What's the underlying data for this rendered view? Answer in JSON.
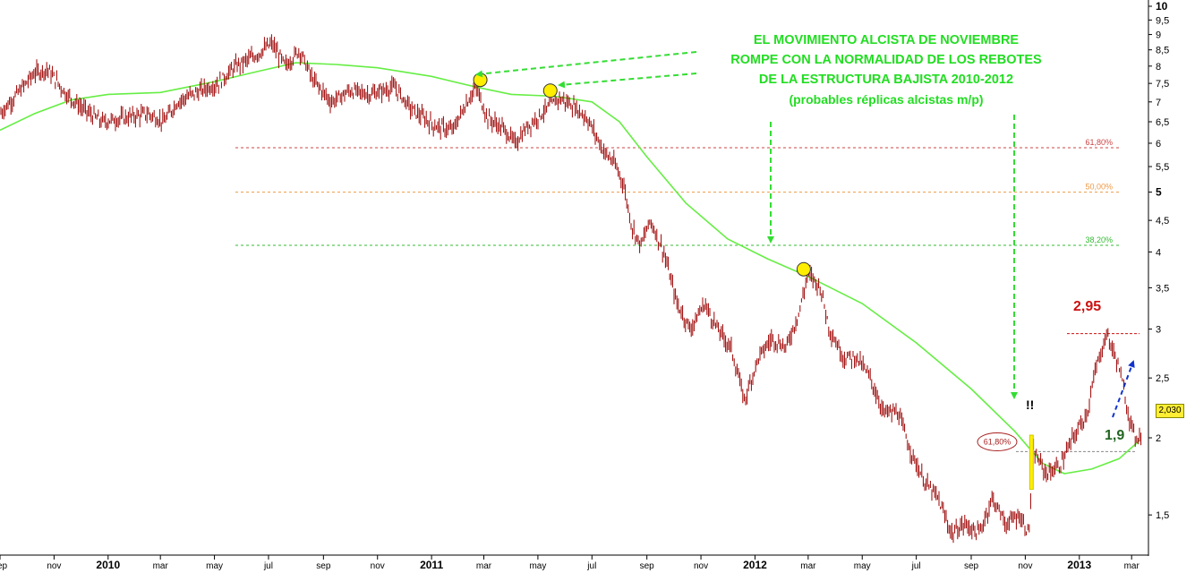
{
  "chart_data": {
    "type": "line",
    "title": "",
    "xlabel": "",
    "ylabel": "",
    "y_scale": "log",
    "ylim": [
      1.3,
      10
    ],
    "y_ticks": [
      "10",
      "9,5",
      "9",
      "8,5",
      "8",
      "7,5",
      "7",
      "6,5",
      "6",
      "5,5",
      "5",
      "4,5",
      "4",
      "3,5",
      "3",
      "2,5",
      "2",
      "1,5"
    ],
    "y_tick_values": [
      10,
      9.5,
      9,
      8.5,
      8,
      7.5,
      7,
      6.5,
      6,
      5.5,
      5,
      4.5,
      4,
      3.5,
      3,
      2.5,
      2,
      1.5
    ],
    "y_major_ticks": [
      "10",
      "5"
    ],
    "x_range": [
      "2009-09-01",
      "2013-03-20"
    ],
    "x_ticks": [
      {
        "label": "sep",
        "date": "2009-09-01",
        "major": false
      },
      {
        "label": "nov",
        "date": "2009-11-01",
        "major": false
      },
      {
        "label": "2010",
        "date": "2010-01-01",
        "major": true
      },
      {
        "label": "mar",
        "date": "2010-03-01",
        "major": false
      },
      {
        "label": "may",
        "date": "2010-05-01",
        "major": false
      },
      {
        "label": "jul",
        "date": "2010-07-01",
        "major": false
      },
      {
        "label": "sep",
        "date": "2010-09-01",
        "major": false
      },
      {
        "label": "nov",
        "date": "2010-11-01",
        "major": false
      },
      {
        "label": "2011",
        "date": "2011-01-01",
        "major": true
      },
      {
        "label": "mar",
        "date": "2011-03-01",
        "major": false
      },
      {
        "label": "may",
        "date": "2011-05-01",
        "major": false
      },
      {
        "label": "jul",
        "date": "2011-07-01",
        "major": false
      },
      {
        "label": "sep",
        "date": "2011-09-01",
        "major": false
      },
      {
        "label": "nov",
        "date": "2011-11-01",
        "major": false
      },
      {
        "label": "2012",
        "date": "2012-01-01",
        "major": true
      },
      {
        "label": "mar",
        "date": "2012-03-01",
        "major": false
      },
      {
        "label": "may",
        "date": "2012-05-01",
        "major": false
      },
      {
        "label": "jul",
        "date": "2012-07-01",
        "major": false
      },
      {
        "label": "sep",
        "date": "2012-09-01",
        "major": false
      },
      {
        "label": "nov",
        "date": "2012-11-01",
        "major": false
      },
      {
        "label": "2013",
        "date": "2013-01-01",
        "major": true
      },
      {
        "label": "mar",
        "date": "2013-03-01",
        "major": false
      }
    ],
    "grid": false,
    "series": [
      {
        "kind": "price-bars",
        "color": "#990000",
        "points": [
          {
            "x": "2009-09-01",
            "y": 6.7
          },
          {
            "x": "2009-09-20",
            "y": 7.2
          },
          {
            "x": "2009-10-10",
            "y": 7.8
          },
          {
            "x": "2009-10-25",
            "y": 7.9
          },
          {
            "x": "2009-11-15",
            "y": 7.2
          },
          {
            "x": "2009-12-05",
            "y": 6.8
          },
          {
            "x": "2009-12-25",
            "y": 6.5
          },
          {
            "x": "2010-01-20",
            "y": 6.6
          },
          {
            "x": "2010-02-15",
            "y": 6.7
          },
          {
            "x": "2010-03-05",
            "y": 6.5
          },
          {
            "x": "2010-03-20",
            "y": 7.0
          },
          {
            "x": "2010-04-15",
            "y": 7.3
          },
          {
            "x": "2010-05-05",
            "y": 7.5
          },
          {
            "x": "2010-05-25",
            "y": 8.0
          },
          {
            "x": "2010-06-15",
            "y": 8.3
          },
          {
            "x": "2010-07-05",
            "y": 8.7
          },
          {
            "x": "2010-07-20",
            "y": 8.0
          },
          {
            "x": "2010-08-05",
            "y": 8.5
          },
          {
            "x": "2010-08-20",
            "y": 7.6
          },
          {
            "x": "2010-09-10",
            "y": 7.0
          },
          {
            "x": "2010-10-01",
            "y": 7.3
          },
          {
            "x": "2010-10-25",
            "y": 7.2
          },
          {
            "x": "2010-11-20",
            "y": 7.4
          },
          {
            "x": "2010-12-10",
            "y": 6.8
          },
          {
            "x": "2011-01-05",
            "y": 6.4
          },
          {
            "x": "2011-01-25",
            "y": 6.3
          },
          {
            "x": "2011-02-10",
            "y": 7.0
          },
          {
            "x": "2011-02-20",
            "y": 7.4
          },
          {
            "x": "2011-03-05",
            "y": 6.6
          },
          {
            "x": "2011-03-25",
            "y": 6.3
          },
          {
            "x": "2011-04-05",
            "y": 6.0
          },
          {
            "x": "2011-04-20",
            "y": 6.4
          },
          {
            "x": "2011-05-10",
            "y": 6.8
          },
          {
            "x": "2011-05-25",
            "y": 7.1
          },
          {
            "x": "2011-06-10",
            "y": 6.9
          },
          {
            "x": "2011-06-25",
            "y": 6.6
          },
          {
            "x": "2011-07-05",
            "y": 6.2
          },
          {
            "x": "2011-07-15",
            "y": 5.8
          },
          {
            "x": "2011-07-25",
            "y": 5.6
          },
          {
            "x": "2011-08-05",
            "y": 5.2
          },
          {
            "x": "2011-08-15",
            "y": 4.4
          },
          {
            "x": "2011-08-25",
            "y": 4.1
          },
          {
            "x": "2011-09-05",
            "y": 4.5
          },
          {
            "x": "2011-09-20",
            "y": 4.0
          },
          {
            "x": "2011-10-05",
            "y": 3.3
          },
          {
            "x": "2011-10-20",
            "y": 3.0
          },
          {
            "x": "2011-11-05",
            "y": 3.3
          },
          {
            "x": "2011-11-20",
            "y": 3.0
          },
          {
            "x": "2011-12-05",
            "y": 2.8
          },
          {
            "x": "2011-12-20",
            "y": 2.3
          },
          {
            "x": "2012-01-05",
            "y": 2.7
          },
          {
            "x": "2012-01-20",
            "y": 2.9
          },
          {
            "x": "2012-02-05",
            "y": 2.8
          },
          {
            "x": "2012-02-20",
            "y": 3.2
          },
          {
            "x": "2012-03-01",
            "y": 3.7
          },
          {
            "x": "2012-03-15",
            "y": 3.5
          },
          {
            "x": "2012-03-25",
            "y": 3.0
          },
          {
            "x": "2012-04-10",
            "y": 2.7
          },
          {
            "x": "2012-04-25",
            "y": 2.7
          },
          {
            "x": "2012-05-10",
            "y": 2.5
          },
          {
            "x": "2012-05-25",
            "y": 2.2
          },
          {
            "x": "2012-06-10",
            "y": 2.2
          },
          {
            "x": "2012-06-25",
            "y": 1.9
          },
          {
            "x": "2012-07-10",
            "y": 1.7
          },
          {
            "x": "2012-07-25",
            "y": 1.6
          },
          {
            "x": "2012-08-10",
            "y": 1.4
          },
          {
            "x": "2012-08-25",
            "y": 1.45
          },
          {
            "x": "2012-09-10",
            "y": 1.4
          },
          {
            "x": "2012-09-25",
            "y": 1.6
          },
          {
            "x": "2012-10-10",
            "y": 1.45
          },
          {
            "x": "2012-10-25",
            "y": 1.5
          },
          {
            "x": "2012-11-05",
            "y": 1.4
          },
          {
            "x": "2012-11-10",
            "y": 1.9
          },
          {
            "x": "2012-11-25",
            "y": 1.75
          },
          {
            "x": "2012-12-10",
            "y": 1.8
          },
          {
            "x": "2012-12-25",
            "y": 2.0
          },
          {
            "x": "2013-01-10",
            "y": 2.2
          },
          {
            "x": "2013-01-20",
            "y": 2.6
          },
          {
            "x": "2013-02-01",
            "y": 2.95
          },
          {
            "x": "2013-02-15",
            "y": 2.6
          },
          {
            "x": "2013-02-25",
            "y": 2.2
          },
          {
            "x": "2013-03-05",
            "y": 2.0
          },
          {
            "x": "2013-03-12",
            "y": 2.03
          }
        ]
      },
      {
        "kind": "moving-average",
        "color": "#66ee44",
        "points": [
          {
            "x": "2009-09-01",
            "y": 6.3
          },
          {
            "x": "2009-10-10",
            "y": 6.7
          },
          {
            "x": "2009-11-20",
            "y": 7.05
          },
          {
            "x": "2010-01-01",
            "y": 7.2
          },
          {
            "x": "2010-03-01",
            "y": 7.25
          },
          {
            "x": "2010-05-01",
            "y": 7.55
          },
          {
            "x": "2010-06-20",
            "y": 7.85
          },
          {
            "x": "2010-08-01",
            "y": 8.1
          },
          {
            "x": "2010-09-15",
            "y": 8.05
          },
          {
            "x": "2010-11-01",
            "y": 7.95
          },
          {
            "x": "2011-01-01",
            "y": 7.7
          },
          {
            "x": "2011-02-20",
            "y": 7.4
          },
          {
            "x": "2011-04-01",
            "y": 7.2
          },
          {
            "x": "2011-05-20",
            "y": 7.15
          },
          {
            "x": "2011-07-01",
            "y": 7.0
          },
          {
            "x": "2011-08-01",
            "y": 6.5
          },
          {
            "x": "2011-09-01",
            "y": 5.7
          },
          {
            "x": "2011-10-15",
            "y": 4.8
          },
          {
            "x": "2011-12-01",
            "y": 4.2
          },
          {
            "x": "2012-01-15",
            "y": 3.9
          },
          {
            "x": "2012-03-01",
            "y": 3.65
          },
          {
            "x": "2012-05-01",
            "y": 3.3
          },
          {
            "x": "2012-07-01",
            "y": 2.85
          },
          {
            "x": "2012-09-01",
            "y": 2.4
          },
          {
            "x": "2012-10-20",
            "y": 2.05
          },
          {
            "x": "2012-11-20",
            "y": 1.82
          },
          {
            "x": "2012-12-15",
            "y": 1.75
          },
          {
            "x": "2013-01-15",
            "y": 1.78
          },
          {
            "x": "2013-02-15",
            "y": 1.85
          },
          {
            "x": "2013-03-10",
            "y": 1.98
          }
        ]
      }
    ],
    "fibonacci_levels": [
      {
        "label": "61,80%",
        "value": 5.9,
        "color": "#cc4444"
      },
      {
        "label": "50,00%",
        "value": 5.0,
        "color": "#ee9944"
      },
      {
        "label": "38,20%",
        "value": 4.1,
        "color": "#33bb33"
      }
    ],
    "reference_levels": [
      {
        "value": 2.95,
        "color": "#cc1111"
      },
      {
        "value": 1.9,
        "color": "#888888"
      }
    ],
    "markers": [
      {
        "x": "2011-02-25",
        "y": 7.6
      },
      {
        "x": "2011-05-15",
        "y": 7.3
      },
      {
        "x": "2012-02-25",
        "y": 3.75
      }
    ],
    "current_price_label": "2,030",
    "current_price": 2.03,
    "annotations": {
      "headline": [
        "EL MOVIMIENTO ALCISTA DE NOVIEMBRE",
        "ROMPE CON LA NORMALIDAD DE LOS REBOTES",
        "DE LA ESTRUCTURA BAJISTA 2010-2012"
      ],
      "headline_note": "(probables réplicas alcistas m/p)",
      "high_label": "2,95",
      "low_label": "1,9",
      "exclamation": "!!",
      "fib_circle_label": "61,80%"
    }
  }
}
